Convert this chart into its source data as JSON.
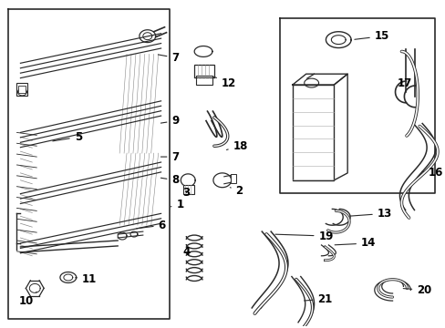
{
  "bg_color": "#ffffff",
  "line_color": "#2a2a2a",
  "lw": 1.0
}
